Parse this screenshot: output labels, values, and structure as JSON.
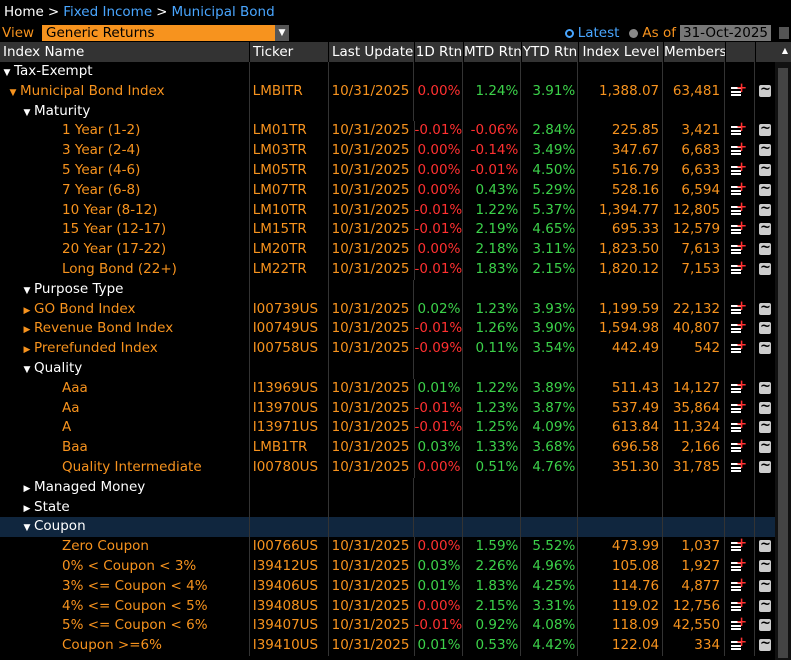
{
  "breadcrumb": {
    "home": "Home",
    "sep": ">",
    "items": [
      "Fixed Income",
      "Municipal Bond"
    ]
  },
  "view": {
    "label": "View",
    "selected": "Generic Returns"
  },
  "mode": {
    "latest": "Latest",
    "asof": "As of",
    "date": "31-Oct-2025"
  },
  "columns": [
    "Index Name",
    "Ticker",
    "Last Update",
    "1D Rtn",
    "MTD Rtn",
    "YTD Rtn",
    "Index Level",
    "Members"
  ],
  "rows": [
    {
      "level": 0,
      "kind": "group",
      "toggle": "down",
      "name": "Tax-Exempt"
    },
    {
      "level": 1,
      "kind": "data",
      "toggle": "down",
      "name": "Municipal Bond Index",
      "ticker": "LMBITR",
      "upd": "10/31/2025",
      "d1": "0.00%",
      "mtd": "1.24%",
      "ytd": "3.91%",
      "lvl": "1,388.07",
      "mem": "63,481"
    },
    {
      "level": 2,
      "kind": "group",
      "toggle": "down",
      "name": "Maturity"
    },
    {
      "level": 3,
      "kind": "data",
      "name": "1 Year (1-2)",
      "ticker": "LM01TR",
      "upd": "10/31/2025",
      "d1": "-0.01%",
      "mtd": "-0.06%",
      "ytd": "2.84%",
      "lvl": "225.85",
      "mem": "3,421"
    },
    {
      "level": 3,
      "kind": "data",
      "name": "3 Year (2-4)",
      "ticker": "LM03TR",
      "upd": "10/31/2025",
      "d1": "0.00%",
      "mtd": "-0.14%",
      "ytd": "3.49%",
      "lvl": "347.67",
      "mem": "6,683"
    },
    {
      "level": 3,
      "kind": "data",
      "name": "5 Year (4-6)",
      "ticker": "LM05TR",
      "upd": "10/31/2025",
      "d1": "0.00%",
      "mtd": "-0.01%",
      "ytd": "4.50%",
      "lvl": "516.79",
      "mem": "6,633"
    },
    {
      "level": 3,
      "kind": "data",
      "name": "7 Year (6-8)",
      "ticker": "LM07TR",
      "upd": "10/31/2025",
      "d1": "0.00%",
      "mtd": "0.43%",
      "ytd": "5.29%",
      "lvl": "528.16",
      "mem": "6,594"
    },
    {
      "level": 3,
      "kind": "data",
      "name": "10 Year (8-12)",
      "ticker": "LM10TR",
      "upd": "10/31/2025",
      "d1": "-0.01%",
      "mtd": "1.22%",
      "ytd": "5.37%",
      "lvl": "1,394.77",
      "mem": "12,805"
    },
    {
      "level": 3,
      "kind": "data",
      "name": "15 Year (12-17)",
      "ticker": "LM15TR",
      "upd": "10/31/2025",
      "d1": "-0.01%",
      "mtd": "2.19%",
      "ytd": "4.65%",
      "lvl": "695.33",
      "mem": "12,579"
    },
    {
      "level": 3,
      "kind": "data",
      "name": "20 Year (17-22)",
      "ticker": "LM20TR",
      "upd": "10/31/2025",
      "d1": "0.00%",
      "mtd": "2.18%",
      "ytd": "3.11%",
      "lvl": "1,823.50",
      "mem": "7,613"
    },
    {
      "level": 3,
      "kind": "data",
      "name": "Long Bond (22+)",
      "ticker": "LM22TR",
      "upd": "10/31/2025",
      "d1": "-0.01%",
      "mtd": "1.83%",
      "ytd": "2.15%",
      "lvl": "1,820.12",
      "mem": "7,153"
    },
    {
      "level": 2,
      "kind": "group",
      "toggle": "down",
      "name": "Purpose Type"
    },
    {
      "level": 2,
      "kind": "data",
      "toggle": "right",
      "name": "GO Bond Index",
      "ticker": "I00739US",
      "upd": "10/31/2025",
      "d1": "0.02%",
      "mtd": "1.23%",
      "ytd": "3.93%",
      "lvl": "1,199.59",
      "mem": "22,132"
    },
    {
      "level": 2,
      "kind": "data",
      "toggle": "right",
      "name": "Revenue Bond Index",
      "ticker": "I00749US",
      "upd": "10/31/2025",
      "d1": "-0.01%",
      "mtd": "1.26%",
      "ytd": "3.90%",
      "lvl": "1,594.98",
      "mem": "40,807"
    },
    {
      "level": 2,
      "kind": "data",
      "toggle": "right",
      "name": "Prerefunded Index",
      "ticker": "I00758US",
      "upd": "10/31/2025",
      "d1": "-0.09%",
      "mtd": "0.11%",
      "ytd": "3.54%",
      "lvl": "442.49",
      "mem": "542"
    },
    {
      "level": 2,
      "kind": "group",
      "toggle": "down",
      "name": "Quality"
    },
    {
      "level": 3,
      "kind": "data",
      "name": "Aaa",
      "ticker": "I13969US",
      "upd": "10/31/2025",
      "d1": "0.01%",
      "mtd": "1.22%",
      "ytd": "3.89%",
      "lvl": "511.43",
      "mem": "14,127"
    },
    {
      "level": 3,
      "kind": "data",
      "name": "Aa",
      "ticker": "I13970US",
      "upd": "10/31/2025",
      "d1": "-0.01%",
      "mtd": "1.23%",
      "ytd": "3.87%",
      "lvl": "537.49",
      "mem": "35,864"
    },
    {
      "level": 3,
      "kind": "data",
      "name": "A",
      "ticker": "I13971US",
      "upd": "10/31/2025",
      "d1": "-0.01%",
      "mtd": "1.25%",
      "ytd": "4.09%",
      "lvl": "613.84",
      "mem": "11,324"
    },
    {
      "level": 3,
      "kind": "data",
      "name": "Baa",
      "ticker": "LMB1TR",
      "upd": "10/31/2025",
      "d1": "0.03%",
      "mtd": "1.33%",
      "ytd": "3.68%",
      "lvl": "696.58",
      "mem": "2,166"
    },
    {
      "level": 3,
      "kind": "data",
      "name": "Quality Intermediate",
      "ticker": "I00780US",
      "upd": "10/31/2025",
      "d1": "0.00%",
      "mtd": "0.51%",
      "ytd": "4.76%",
      "lvl": "351.30",
      "mem": "31,785"
    },
    {
      "level": 2,
      "kind": "group",
      "toggle": "right",
      "name": "Managed Money"
    },
    {
      "level": 2,
      "kind": "group",
      "toggle": "right",
      "name": "State"
    },
    {
      "level": 2,
      "kind": "group",
      "toggle": "down",
      "name": "Coupon",
      "selected": true
    },
    {
      "level": 3,
      "kind": "data",
      "name": "Zero Coupon",
      "ticker": "I00766US",
      "upd": "10/31/2025",
      "d1": "0.00%",
      "mtd": "1.59%",
      "ytd": "5.52%",
      "lvl": "473.99",
      "mem": "1,037"
    },
    {
      "level": 3,
      "kind": "data",
      "name": "0% < Coupon < 3%",
      "ticker": "I39412US",
      "upd": "10/31/2025",
      "d1": "0.03%",
      "mtd": "2.26%",
      "ytd": "4.96%",
      "lvl": "105.08",
      "mem": "1,927"
    },
    {
      "level": 3,
      "kind": "data",
      "name": "3% <= Coupon < 4%",
      "ticker": "I39406US",
      "upd": "10/31/2025",
      "d1": "0.01%",
      "mtd": "1.83%",
      "ytd": "4.25%",
      "lvl": "114.76",
      "mem": "4,877"
    },
    {
      "level": 3,
      "kind": "data",
      "name": "4% <= Coupon < 5%",
      "ticker": "I39408US",
      "upd": "10/31/2025",
      "d1": "0.00%",
      "mtd": "2.15%",
      "ytd": "3.31%",
      "lvl": "119.02",
      "mem": "12,756"
    },
    {
      "level": 3,
      "kind": "data",
      "name": "5% <= Coupon < 6%",
      "ticker": "I39407US",
      "upd": "10/31/2025",
      "d1": "-0.01%",
      "mtd": "0.92%",
      "ytd": "4.08%",
      "lvl": "118.09",
      "mem": "42,550"
    },
    {
      "level": 3,
      "kind": "data",
      "name": "Coupon >=6%",
      "ticker": "I39410US",
      "upd": "10/31/2025",
      "d1": "0.01%",
      "mtd": "0.53%",
      "ytd": "4.42%",
      "lvl": "122.04",
      "mem": "334"
    }
  ]
}
